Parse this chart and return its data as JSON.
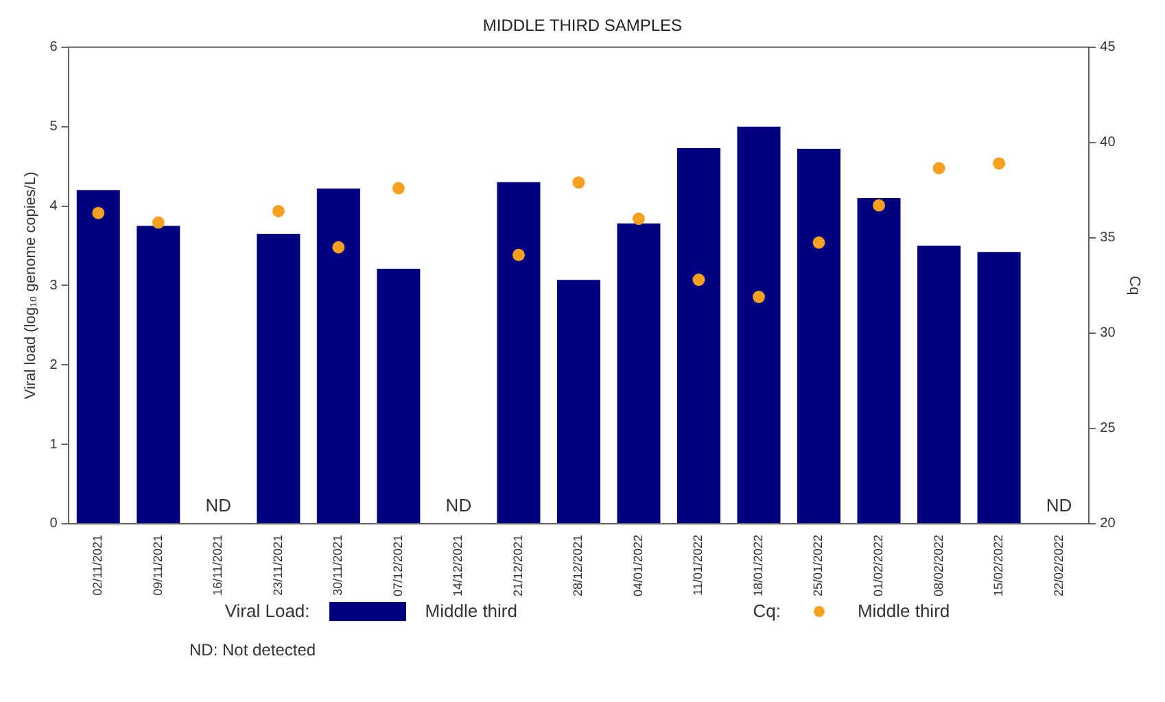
{
  "chart_data": {
    "type": "bar",
    "title": "MIDDLE THIRD SAMPLES",
    "ylabel": "Viral load (log₁₀ genome copies/L)",
    "y2label": "Cq",
    "categories": [
      "02/11/2021",
      "09/11/2021",
      "16/11/2021",
      "23/11/2021",
      "30/11/2021",
      "07/12/2021",
      "14/12/2021",
      "21/12/2021",
      "28/12/2021",
      "04/01/2022",
      "11/01/2022",
      "18/01/2022",
      "25/01/2022",
      "01/02/2022",
      "08/02/2022",
      "15/02/2022",
      "22/02/2022"
    ],
    "series": [
      {
        "name": "Middle third",
        "color": "#000080",
        "values": [
          4.2,
          3.75,
          null,
          3.65,
          4.22,
          3.21,
          null,
          4.3,
          3.07,
          3.78,
          4.73,
          5.0,
          4.72,
          4.1,
          3.5,
          3.42,
          null
        ]
      },
      {
        "name": "Middle third",
        "type": "scatter",
        "axis": "y2",
        "color": "#f5a020",
        "marker": "circle",
        "values": [
          36.3,
          35.8,
          null,
          36.4,
          34.5,
          37.6,
          null,
          34.1,
          37.9,
          36.0,
          32.8,
          31.9,
          34.75,
          36.7,
          38.65,
          38.9,
          null
        ]
      }
    ],
    "ylim": [
      0,
      6
    ],
    "yticks": [
      0,
      1,
      2,
      3,
      4,
      5,
      6
    ],
    "y2lim": [
      20,
      45
    ],
    "y2ticks": [
      20,
      25,
      30,
      35,
      40,
      45
    ],
    "grid": false,
    "legend": "bottom",
    "annotations": [
      "Viral Load:",
      "Cq:",
      "ND: Not detected",
      "ND",
      "ND",
      "ND"
    ]
  }
}
